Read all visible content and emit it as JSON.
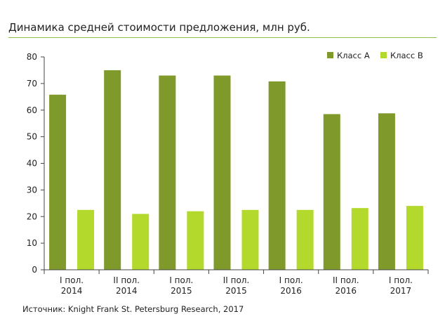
{
  "chart_data": {
    "type": "bar",
    "title": "Динамика средней стоимости предложения, млн руб.",
    "categories": [
      [
        "I пол.",
        "2014"
      ],
      [
        "II пол.",
        "2014"
      ],
      [
        "I пол.",
        "2015"
      ],
      [
        "II пол.",
        "2015"
      ],
      [
        "I пол.",
        "2016"
      ],
      [
        "II пол.",
        "2016"
      ],
      [
        "I пол.",
        "2017"
      ]
    ],
    "series": [
      {
        "name": "Класс А",
        "color": "#7f9a2a",
        "values": [
          65.8,
          75.0,
          73.0,
          73.0,
          70.8,
          58.5,
          58.8
        ]
      },
      {
        "name": "Класс В",
        "color": "#b3d92d",
        "values": [
          22.5,
          21.0,
          22.0,
          22.5,
          22.5,
          23.2,
          24.0
        ]
      }
    ],
    "ylim": [
      0,
      80
    ],
    "yticks": [
      0,
      10,
      20,
      30,
      40,
      50,
      60,
      70,
      80
    ],
    "xlabel": "",
    "ylabel": "",
    "grid": false,
    "legend_position": "top-right"
  },
  "source": "Источник: Knight Frank St. Petersburg Research, 2017"
}
